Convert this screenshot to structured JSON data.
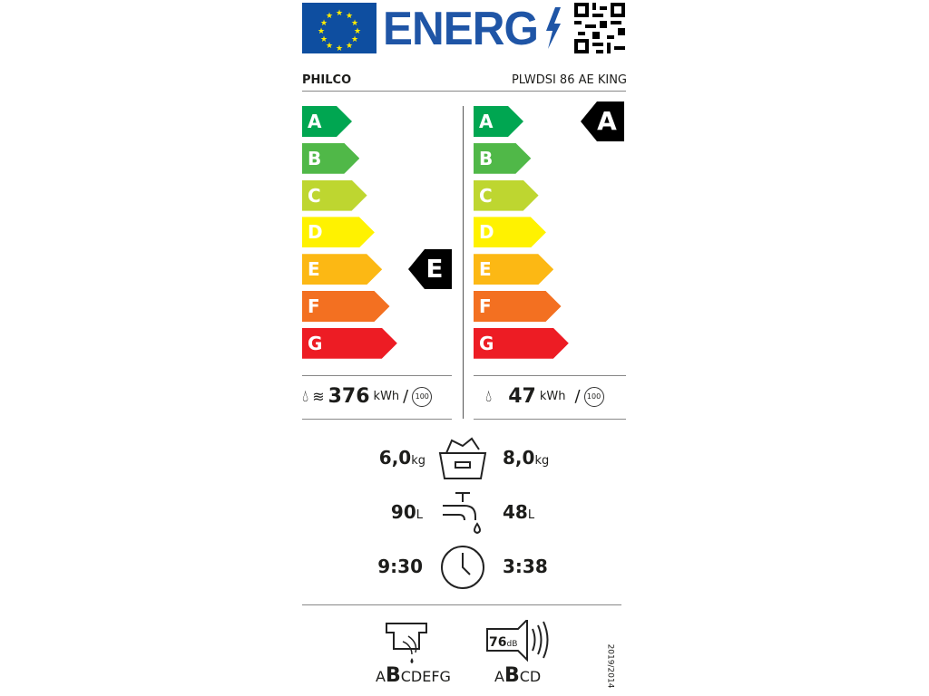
{
  "header": {
    "logo_text": "ENERG",
    "brand": "PHILCO",
    "model": "PLWDSI 86 AE KING"
  },
  "scale": {
    "classes": [
      "A",
      "B",
      "C",
      "D",
      "E",
      "F",
      "G"
    ],
    "colors": [
      "#00a651",
      "#50b848",
      "#bed630",
      "#fff200",
      "#fcb814",
      "#f37021",
      "#ed1c24"
    ]
  },
  "washer_dryer": {
    "class": "E",
    "energy_value": "376",
    "energy_unit": "kWh",
    "cycles": "100"
  },
  "washer": {
    "class": "A",
    "energy_value": "47",
    "energy_unit": "kWh",
    "cycles": "100"
  },
  "capacity": {
    "wd_value": "6,0",
    "wash_value": "8,0",
    "unit": "kg"
  },
  "water": {
    "wd_value": "90",
    "wash_value": "48",
    "unit": "L"
  },
  "duration": {
    "wd_value": "9:30",
    "wash_value": "3:38"
  },
  "spin_class": {
    "prefix": "A",
    "selected": "B",
    "suffix": "CDEFG"
  },
  "noise": {
    "value": "76",
    "unit": "dB",
    "prefix": "A",
    "selected": "B",
    "suffix": "CD"
  },
  "regulation": "2019/2014"
}
